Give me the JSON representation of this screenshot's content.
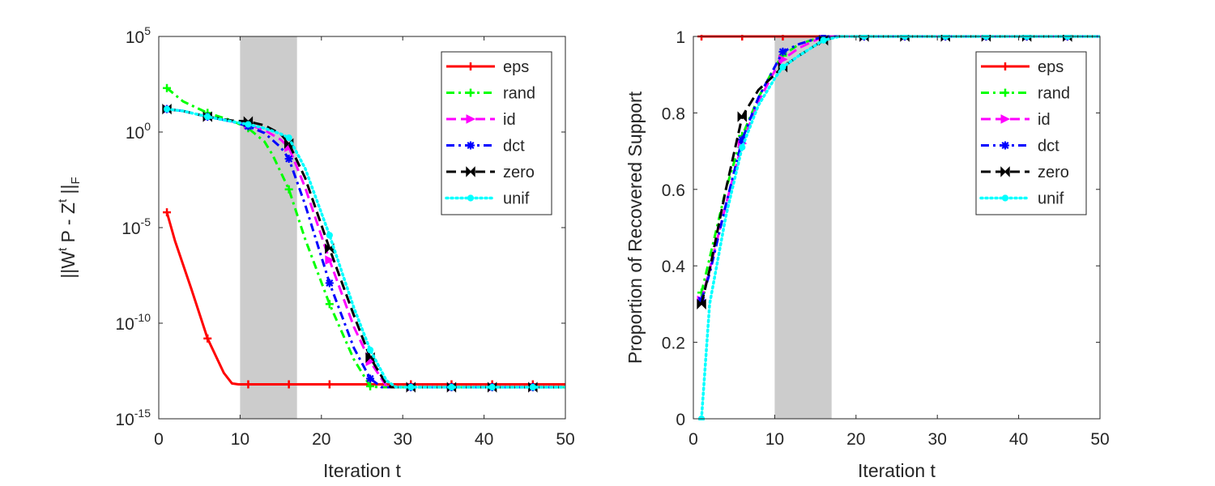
{
  "chart_data": [
    {
      "type": "line",
      "yscale": "log",
      "xlabel": "Iteration t",
      "ylabel": {
        "base": "||W",
        "sup1": "t",
        "mid": " P - Z",
        "sup2": "t",
        "end": " ||",
        "sub": "F"
      },
      "xlim": [
        0,
        50
      ],
      "ylim_exp": [
        -15,
        5
      ],
      "xticks": [
        0,
        10,
        20,
        30,
        40,
        50
      ],
      "xtick_labels": [
        "0",
        "10",
        "20",
        "30",
        "40",
        "50"
      ],
      "yticks_exp": [
        -15,
        -10,
        -5,
        0,
        5
      ],
      "ytick_labels": [
        {
          "base": "10",
          "exp": "-15"
        },
        {
          "base": "10",
          "exp": "-10"
        },
        {
          "base": "10",
          "exp": "-5"
        },
        {
          "base": "10",
          "exp": "0"
        },
        {
          "base": "10",
          "exp": "5"
        }
      ],
      "shaded_region": [
        10,
        17
      ],
      "legend": {
        "location": "top-right"
      },
      "marker_x": [
        1,
        6,
        11,
        16,
        21,
        26,
        31,
        36,
        41,
        46
      ],
      "series": [
        {
          "name": "eps",
          "color": "#ff0000",
          "dash": "",
          "marker": "plus",
          "width": 3,
          "x": [
            1,
            2,
            4,
            6,
            8,
            9,
            9.8,
            11,
            16,
            21,
            26,
            31,
            36,
            41,
            46,
            50
          ],
          "log10y": [
            -4.2,
            -5.7,
            -8.2,
            -10.8,
            -12.6,
            -13.15,
            -13.2,
            -13.2,
            -13.2,
            -13.2,
            -13.2,
            -13.2,
            -13.2,
            -13.2,
            -13.2,
            -13.2
          ]
        },
        {
          "name": "rand",
          "color": "#00ff00",
          "dash": "10,5,3,5",
          "marker": "plus",
          "width": 3,
          "x": [
            1,
            3,
            6,
            9,
            11,
            13,
            14,
            16,
            18,
            21,
            24,
            26,
            27,
            31,
            36,
            41,
            46,
            50
          ],
          "log10y": [
            2.3,
            1.6,
            1.0,
            0.6,
            0.2,
            -0.5,
            -1.2,
            -3.0,
            -5.6,
            -9.0,
            -11.9,
            -13.3,
            -13.35,
            -13.35,
            -13.35,
            -13.35,
            -13.35,
            -13.35
          ]
        },
        {
          "name": "id",
          "color": "#ff00ff",
          "dash": "12,6",
          "marker": "tri",
          "width": 3,
          "x": [
            1,
            3,
            6,
            9,
            11,
            13,
            15,
            16,
            18,
            21,
            24,
            26,
            28,
            28.6,
            31,
            36,
            41,
            46,
            50
          ],
          "log10y": [
            1.2,
            1.1,
            0.8,
            0.55,
            0.4,
            0.1,
            -0.4,
            -0.8,
            -2.9,
            -6.7,
            -10.2,
            -12.0,
            -13.3,
            -13.35,
            -13.35,
            -13.35,
            -13.35,
            -13.35,
            -13.35
          ]
        },
        {
          "name": "dct",
          "color": "#0000ff",
          "dash": "10,5,3,5",
          "marker": "star",
          "width": 3,
          "x": [
            1,
            3,
            6,
            9,
            11,
            13,
            15,
            16,
            18,
            21,
            24,
            26,
            27.4,
            31,
            36,
            41,
            46,
            50
          ],
          "log10y": [
            1.2,
            1.1,
            0.8,
            0.55,
            0.3,
            -0.05,
            -0.8,
            -1.4,
            -3.8,
            -7.9,
            -11.3,
            -12.9,
            -13.35,
            -13.35,
            -13.35,
            -13.35,
            -13.35,
            -13.35
          ]
        },
        {
          "name": "zero",
          "color": "#000000",
          "dash": "12,6",
          "marker": "bowtie",
          "width": 3,
          "x": [
            1,
            3,
            6,
            9,
            11,
            13,
            15,
            16,
            18,
            21,
            24,
            26,
            28,
            28.6,
            31,
            36,
            41,
            46,
            50
          ],
          "log10y": [
            1.2,
            1.1,
            0.8,
            0.6,
            0.55,
            0.35,
            -0.1,
            -0.6,
            -2.4,
            -6.1,
            -9.6,
            -11.8,
            -13.2,
            -13.35,
            -13.35,
            -13.35,
            -13.35,
            -13.35,
            -13.35
          ]
        },
        {
          "name": "unif",
          "color": "#00ffff",
          "dash": "2,4",
          "marker": "dot",
          "width": 3.5,
          "x": [
            1,
            3,
            6,
            9,
            11,
            13,
            15,
            16,
            18,
            21,
            24,
            26,
            28,
            29.2,
            31,
            36,
            41,
            46,
            50
          ],
          "log10y": [
            1.2,
            1.1,
            0.8,
            0.55,
            0.4,
            0.2,
            -0.1,
            -0.3,
            -1.9,
            -5.4,
            -9.2,
            -11.4,
            -13.0,
            -13.35,
            -13.35,
            -13.35,
            -13.35,
            -13.35,
            -13.35
          ]
        }
      ]
    },
    {
      "type": "line",
      "yscale": "linear",
      "xlabel": "Iteration t",
      "ylabel": "Proportion of Recovered Support",
      "xlim": [
        0,
        50
      ],
      "ylim": [
        0,
        1
      ],
      "xticks": [
        0,
        10,
        20,
        30,
        40,
        50
      ],
      "xtick_labels": [
        "0",
        "10",
        "20",
        "30",
        "40",
        "50"
      ],
      "yticks": [
        0,
        0.2,
        0.4,
        0.6,
        0.8,
        1
      ],
      "ytick_labels": [
        "0",
        "0.2",
        "0.4",
        "0.6",
        "0.8",
        "1"
      ],
      "shaded_region": [
        10,
        17
      ],
      "legend": {
        "location": "top-right"
      },
      "marker_x": [
        1,
        6,
        11,
        16,
        21,
        26,
        31,
        36,
        41,
        46
      ],
      "series": [
        {
          "name": "eps",
          "color": "#ff0000",
          "dash": "",
          "marker": "plus",
          "width": 3,
          "x": [
            1,
            6,
            11,
            16,
            21,
            26,
            31,
            36,
            41,
            46,
            50
          ],
          "y": [
            1,
            1,
            1,
            1,
            1,
            1,
            1,
            1,
            1,
            1,
            1
          ]
        },
        {
          "name": "rand",
          "color": "#00ff00",
          "dash": "10,5,3,5",
          "marker": "plus",
          "width": 3,
          "x": [
            1,
            2,
            4,
            6,
            8,
            10,
            11,
            13,
            16,
            18,
            21,
            26,
            31,
            36,
            41,
            46,
            50
          ],
          "y": [
            0.33,
            0.42,
            0.6,
            0.74,
            0.84,
            0.92,
            0.95,
            0.98,
            1,
            1,
            1,
            1,
            1,
            1,
            1,
            1,
            1
          ]
        },
        {
          "name": "id",
          "color": "#ff00ff",
          "dash": "12,6",
          "marker": "tri",
          "width": 3,
          "x": [
            1,
            2,
            4,
            6,
            8,
            10,
            11,
            13,
            16,
            18,
            21,
            26,
            31,
            36,
            41,
            46,
            50
          ],
          "y": [
            0.31,
            0.39,
            0.56,
            0.72,
            0.83,
            0.91,
            0.94,
            0.97,
            1,
            1,
            1,
            1,
            1,
            1,
            1,
            1,
            1
          ]
        },
        {
          "name": "dct",
          "color": "#0000ff",
          "dash": "10,5,3,5",
          "marker": "star",
          "width": 3,
          "x": [
            1,
            2,
            4,
            6,
            8,
            10,
            11,
            13,
            16,
            18,
            21,
            26,
            31,
            36,
            41,
            46,
            50
          ],
          "y": [
            0.31,
            0.38,
            0.56,
            0.73,
            0.84,
            0.92,
            0.96,
            0.98,
            1,
            1,
            1,
            1,
            1,
            1,
            1,
            1,
            1
          ]
        },
        {
          "name": "zero",
          "color": "#000000",
          "dash": "12,6",
          "marker": "bowtie",
          "width": 3,
          "x": [
            1,
            2,
            4,
            6,
            8,
            10,
            11,
            13,
            16,
            18,
            21,
            26,
            31,
            36,
            41,
            46,
            50
          ],
          "y": [
            0.3,
            0.39,
            0.6,
            0.79,
            0.86,
            0.9,
            0.92,
            0.95,
            0.99,
            1,
            1,
            1,
            1,
            1,
            1,
            1,
            1
          ]
        },
        {
          "name": "unif",
          "color": "#00ffff",
          "dash": "2,4",
          "marker": "dot",
          "width": 3.5,
          "x": [
            1,
            2,
            4,
            6,
            8,
            10,
            11,
            13,
            16,
            18,
            21,
            26,
            31,
            36,
            41,
            46,
            50
          ],
          "y": [
            0,
            0.3,
            0.53,
            0.71,
            0.82,
            0.89,
            0.92,
            0.95,
            0.99,
            1,
            1,
            1,
            1,
            1,
            1,
            1,
            1
          ]
        }
      ]
    }
  ]
}
